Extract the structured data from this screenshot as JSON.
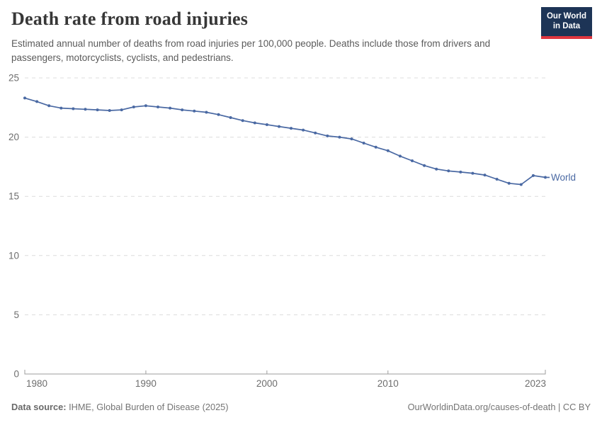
{
  "header": {
    "title": "Death rate from road injuries",
    "subtitle": "Estimated annual number of deaths from road injuries per 100,000 people. Deaths include those from drivers and passengers, motorcyclists, cyclists, and pedestrians.",
    "logo": {
      "line1": "Our World",
      "line2": "in Data"
    }
  },
  "footer": {
    "source_label": "Data source:",
    "source_text": " IHME, Global Burden of Disease (2025)",
    "right_text": "OurWorldinData.org/causes-of-death | CC BY"
  },
  "colors": {
    "series": "#4a69a3",
    "grid": "#dcdcdc",
    "axis": "#9d9d9d",
    "tick_text": "#6e6e6e",
    "logo_bg": "#1d3456",
    "logo_red": "#e0363f"
  },
  "chart_data": {
    "type": "line",
    "title": "Death rate from road injuries",
    "xlabel": "",
    "ylabel": "",
    "xlim": [
      1980,
      2023
    ],
    "ylim": [
      0,
      25
    ],
    "xticks": [
      1980,
      1990,
      2000,
      2010,
      2023
    ],
    "yticks": [
      0,
      5,
      10,
      15,
      20,
      25
    ],
    "grid": true,
    "legend_position": "end-of-line",
    "series": [
      {
        "name": "World",
        "x": [
          1980,
          1981,
          1982,
          1983,
          1984,
          1985,
          1986,
          1987,
          1988,
          1989,
          1990,
          1991,
          1992,
          1993,
          1994,
          1995,
          1996,
          1997,
          1998,
          1999,
          2000,
          2001,
          2002,
          2003,
          2004,
          2005,
          2006,
          2007,
          2008,
          2009,
          2010,
          2011,
          2012,
          2013,
          2014,
          2015,
          2016,
          2017,
          2018,
          2019,
          2020,
          2021,
          2022,
          2023
        ],
        "values": [
          23.3,
          23.0,
          22.65,
          22.45,
          22.4,
          22.35,
          22.3,
          22.25,
          22.3,
          22.55,
          22.65,
          22.55,
          22.45,
          22.3,
          22.2,
          22.1,
          21.9,
          21.65,
          21.4,
          21.2,
          21.05,
          20.9,
          20.75,
          20.6,
          20.35,
          20.1,
          20.0,
          19.85,
          19.5,
          19.15,
          18.85,
          18.4,
          18.0,
          17.6,
          17.3,
          17.15,
          17.05,
          16.95,
          16.8,
          16.45,
          16.1,
          16.0,
          16.75,
          16.6
        ]
      }
    ]
  }
}
